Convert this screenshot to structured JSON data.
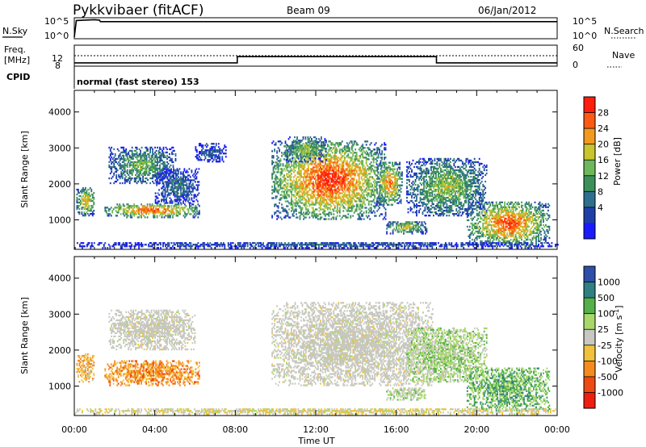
{
  "header": {
    "radar_title": "Pykkvibaer (fitACF)",
    "beam": "Beam 09",
    "date": "06/Jan/2012"
  },
  "status_panels": {
    "nsky_label": "N.Sky",
    "nsearch_label": "N.Search",
    "noise_ticks": [
      "10^5",
      "10^0"
    ],
    "freq_label_top": "Freq.",
    "freq_label_unit": "[MHz]",
    "freq_ticks": [
      "12",
      "8"
    ],
    "nave_label": "Nave",
    "nave_ticks": [
      "60",
      "0"
    ],
    "cpid_label": "CPID",
    "cpid_value": "normal (fast stereo) 153"
  },
  "chart_data": [
    {
      "type": "heatmap",
      "name": "Power",
      "xlabel": "Time UT",
      "ylabel": "Slant Range [km]",
      "x_ticks": [
        "00:00",
        "04:00",
        "08:00",
        "12:00",
        "16:00",
        "20:00",
        "00:00"
      ],
      "xlim_hours": [
        0,
        24
      ],
      "y_ticks": [
        "1000",
        "2000",
        "3000",
        "4000"
      ],
      "ylim_km": [
        180,
        4600
      ],
      "colorbar_label": "Power [dB]",
      "colorbar_ticks": [
        "4",
        "8",
        "12",
        "16",
        "20",
        "24",
        "28"
      ],
      "colorbar_range": [
        0,
        30
      ],
      "colorscale": [
        "#1a1aff",
        "#1f3fa8",
        "#2e6f8f",
        "#3d8f5a",
        "#6fb85a",
        "#c9c52c",
        "#f29a1e",
        "#ff5a14",
        "#ff1e0c"
      ],
      "echo_regions": [
        {
          "t0": 0.1,
          "t1": 1.0,
          "r0": 1100,
          "r1": 1900,
          "peak": 24
        },
        {
          "t0": 1.5,
          "t1": 6.2,
          "r0": 1050,
          "r1": 1450,
          "peak": 28
        },
        {
          "t0": 1.7,
          "t1": 5.0,
          "r0": 2000,
          "r1": 3000,
          "peak": 16
        },
        {
          "t0": 4.0,
          "t1": 6.2,
          "r0": 1450,
          "r1": 2400,
          "peak": 10
        },
        {
          "t0": 6.0,
          "t1": 7.5,
          "r0": 2600,
          "r1": 3100,
          "peak": 8
        },
        {
          "t0": 9.8,
          "t1": 15.5,
          "r0": 1000,
          "r1": 3200,
          "peak": 30
        },
        {
          "t0": 10.5,
          "t1": 12.5,
          "r0": 2600,
          "r1": 3300,
          "peak": 18
        },
        {
          "t0": 15.0,
          "t1": 16.3,
          "r0": 1400,
          "r1": 2600,
          "peak": 26
        },
        {
          "t0": 15.5,
          "t1": 17.5,
          "r0": 600,
          "r1": 950,
          "peak": 20
        },
        {
          "t0": 16.5,
          "t1": 20.5,
          "r0": 1100,
          "r1": 2700,
          "peak": 18
        },
        {
          "t0": 19.5,
          "t1": 23.6,
          "r0": 250,
          "r1": 1500,
          "peak": 28
        },
        {
          "t0": 0.0,
          "t1": 24.0,
          "r0": 200,
          "r1": 380,
          "peak": 8
        }
      ]
    },
    {
      "type": "heatmap",
      "name": "Velocity",
      "xlabel": "Time UT",
      "ylabel": "Slant Range [km]",
      "x_ticks": [
        "00:00",
        "04:00",
        "08:00",
        "12:00",
        "16:00",
        "20:00",
        "00:00"
      ],
      "xlim_hours": [
        0,
        24
      ],
      "y_ticks": [
        "1000",
        "2000",
        "3000",
        "4000"
      ],
      "ylim_km": [
        180,
        4600
      ],
      "colorbar_label": "Velocity  [m s^-1]",
      "colorbar_ticks": [
        "1000",
        "500",
        "100",
        "25",
        "-25",
        "-100",
        "-500",
        "-1000"
      ],
      "colorscale": [
        "#2e4fa8",
        "#2f7f84",
        "#55b04a",
        "#a8d86a",
        "#c8c8c0",
        "#f0c23c",
        "#f58b1e",
        "#ee4a14",
        "#ee1e10"
      ],
      "ground_scatter_color": "#c8c8c0",
      "echo_regions": [
        {
          "t0": 0.1,
          "t1": 1.0,
          "r0": 1100,
          "r1": 1900,
          "v": -300
        },
        {
          "t0": 1.5,
          "t1": 6.2,
          "r0": 1000,
          "r1": 1700,
          "v": -400
        },
        {
          "t0": 1.7,
          "t1": 6.0,
          "r0": 2000,
          "r1": 3100,
          "v": 0
        },
        {
          "t0": 9.8,
          "t1": 17.8,
          "r0": 1000,
          "r1": 3300,
          "v": 0
        },
        {
          "t0": 15.5,
          "t1": 17.5,
          "r0": 600,
          "r1": 950,
          "v": 150
        },
        {
          "t0": 16.5,
          "t1": 20.5,
          "r0": 1100,
          "r1": 2600,
          "v": 200
        },
        {
          "t0": 19.5,
          "t1": 23.6,
          "r0": 300,
          "r1": 1500,
          "v": 400
        },
        {
          "t0": 0.0,
          "t1": 24.0,
          "r0": 200,
          "r1": 380,
          "v": -50
        }
      ]
    },
    {
      "type": "line",
      "name": "Noise sky / search",
      "x": [
        0,
        0.1,
        1.0,
        1.25,
        1.3,
        24
      ],
      "values": [
        0.2,
        4.5,
        4.7,
        4.6,
        4.2,
        4.2
      ]
    },
    {
      "type": "line",
      "name": "Frequency / Nave",
      "freq_steps": [
        {
          "t0": 0,
          "t1": 8.1,
          "mhz": 8.6
        },
        {
          "t0": 8.1,
          "t1": 18.0,
          "mhz": 10.8
        },
        {
          "t0": 18.0,
          "t1": 24,
          "mhz": 8.6
        }
      ],
      "nave_level": 52
    }
  ]
}
